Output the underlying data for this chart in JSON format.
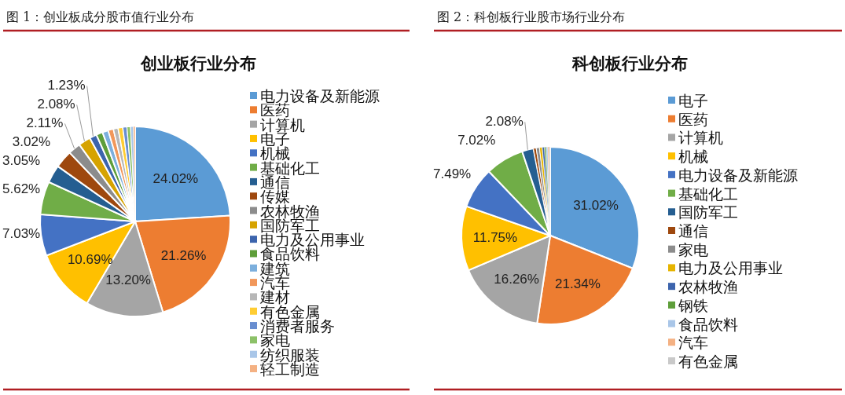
{
  "chart_data": [
    {
      "type": "pie",
      "title": "创业板行业分布",
      "annotations": [
        "图 1：创业板成分股市值行业分布"
      ],
      "legend": "right",
      "categories": [
        "电力设备及新能源",
        "医药",
        "计算机",
        "电子",
        "机械",
        "基础化工",
        "通信",
        "传媒",
        "农林牧渔",
        "国防军工",
        "电力及公用事业",
        "食品饮料",
        "建筑",
        "汽车",
        "建材",
        "有色金属",
        "消费者服务",
        "家电",
        "纺织服装",
        "轻工制造"
      ],
      "values": [
        24.02,
        21.26,
        13.2,
        10.69,
        7.03,
        5.62,
        3.05,
        3.02,
        2.11,
        2.08,
        1.23,
        1.1,
        1.0,
        0.9,
        0.8,
        0.8,
        0.7,
        0.6,
        0.5,
        0.29
      ],
      "value_labels": [
        "24.02%",
        "21.26%",
        "13.20%",
        "10.69%",
        "7.03%",
        "5.62%",
        "3.05%",
        "3.02%",
        "2.11%",
        "2.08%",
        "1.23%",
        null,
        null,
        null,
        null,
        null,
        null,
        null,
        null,
        null
      ],
      "colors": [
        "#5b9bd5",
        "#ed7d31",
        "#a5a5a5",
        "#ffc000",
        "#4472c4",
        "#70ad47",
        "#255e91",
        "#9e480e",
        "#8c8c8c",
        "#d6a300",
        "#3c64ad",
        "#5e9e3a",
        "#7cafdd",
        "#f1975a",
        "#b7b7b7",
        "#ffcd33",
        "#698ed0",
        "#8cc168",
        "#a9c6e8",
        "#f4b183"
      ]
    },
    {
      "type": "pie",
      "title": "科创板行业分布",
      "annotations": [
        "图 2：科创板行业股市场行业分布"
      ],
      "legend": "right",
      "categories": [
        "电子",
        "医药",
        "计算机",
        "机械",
        "电力设备及新能源",
        "基础化工",
        "国防军工",
        "通信",
        "家电",
        "电力及公用事业",
        "农林牧渔",
        "钢铁",
        "食品饮料",
        "汽车",
        "有色金属"
      ],
      "values": [
        31.02,
        21.34,
        16.26,
        11.75,
        7.49,
        7.02,
        2.08,
        0.5,
        0.6,
        0.5,
        0.4,
        0.3,
        0.3,
        0.24,
        0.2
      ],
      "value_labels": [
        "31.02%",
        "21.34%",
        "16.26%",
        "11.75%",
        "7.49%",
        "7.02%",
        "2.08%",
        null,
        null,
        null,
        null,
        null,
        null,
        null,
        null
      ],
      "colors": [
        "#5b9bd5",
        "#ed7d31",
        "#a5a5a5",
        "#ffc000",
        "#4472c4",
        "#70ad47",
        "#255e91",
        "#9e480e",
        "#8c8c8c",
        "#e6b400",
        "#3c64ad",
        "#5e9e3a",
        "#a9c6e8",
        "#f4b183",
        "#c9c9c9"
      ]
    }
  ]
}
